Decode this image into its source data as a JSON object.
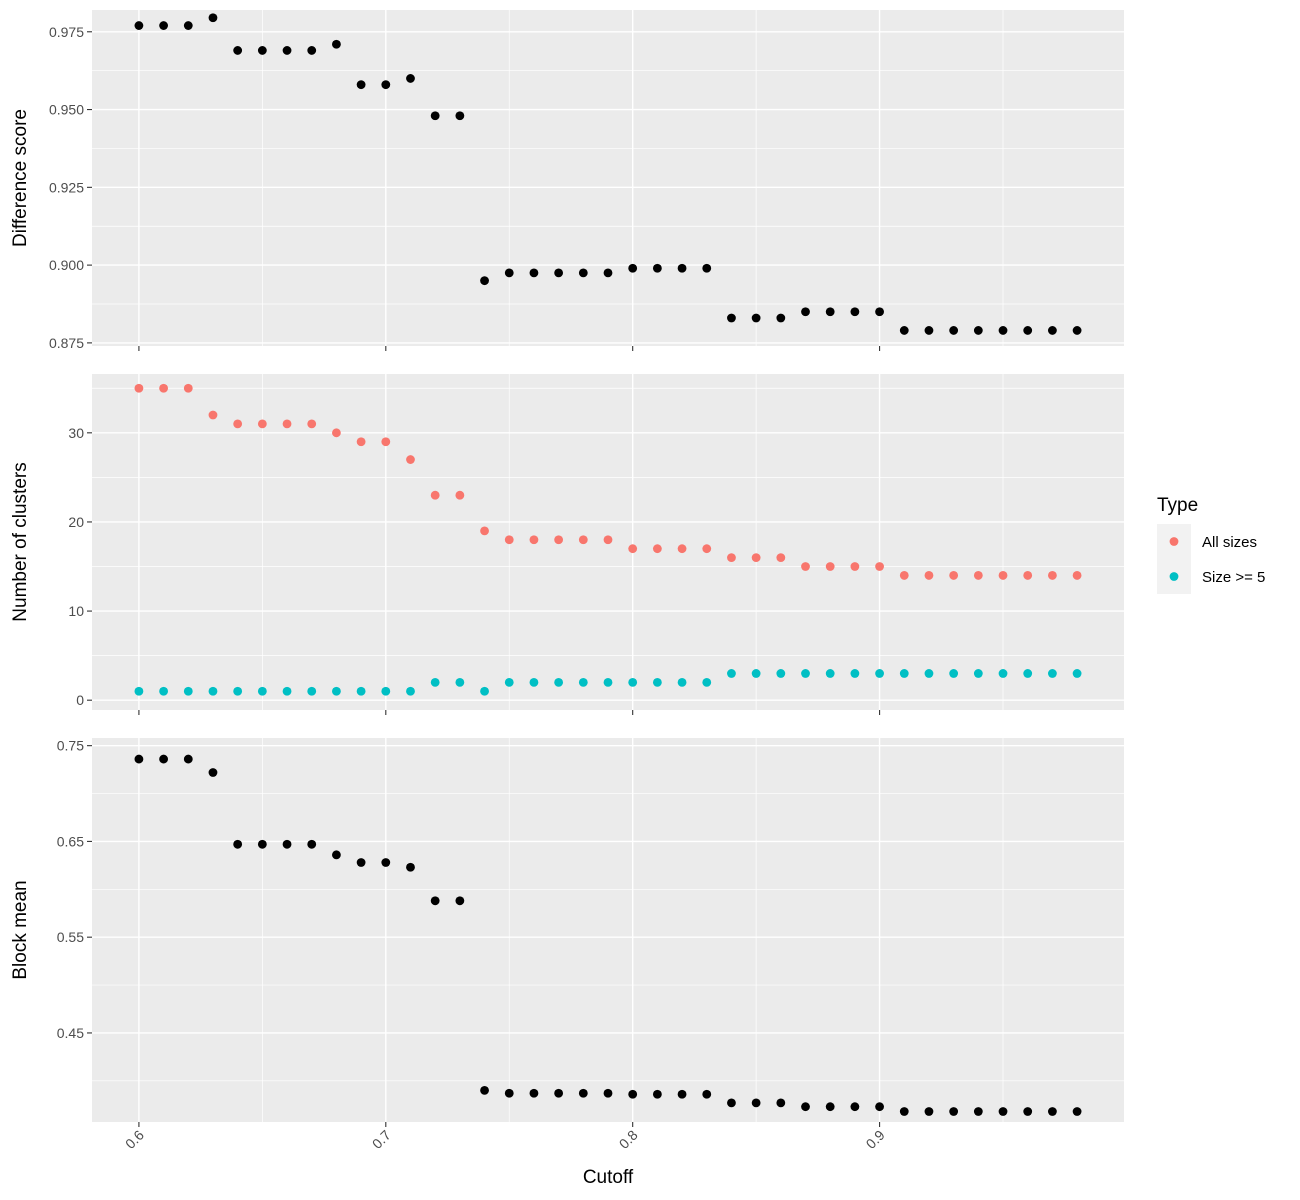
{
  "chart_data": [
    {
      "type": "scatter",
      "ylabel": "Difference score",
      "ylim": [
        0.874,
        0.982
      ],
      "yticks": [
        0.875,
        0.9,
        0.925,
        0.95,
        0.975
      ],
      "ytick_labels": [
        "0.875",
        "0.900",
        "0.925",
        "0.950",
        "0.975"
      ],
      "grid": true,
      "series": [
        {
          "color": "#000000",
          "x": [
            0.6,
            0.61,
            0.62,
            0.63,
            0.64,
            0.65,
            0.66,
            0.67,
            0.68,
            0.69,
            0.7,
            0.71,
            0.72,
            0.73,
            0.74,
            0.75,
            0.76,
            0.77,
            0.78,
            0.79,
            0.8,
            0.81,
            0.82,
            0.83,
            0.84,
            0.85,
            0.86,
            0.87,
            0.88,
            0.89,
            0.9,
            0.91,
            0.92,
            0.93,
            0.94,
            0.95,
            0.96,
            0.97,
            0.98
          ],
          "y": [
            0.977,
            0.977,
            0.977,
            0.9795,
            0.969,
            0.969,
            0.969,
            0.969,
            0.971,
            0.958,
            0.958,
            0.96,
            0.948,
            0.948,
            0.895,
            0.8975,
            0.8975,
            0.8975,
            0.8975,
            0.8975,
            0.899,
            0.899,
            0.899,
            0.899,
            0.883,
            0.883,
            0.883,
            0.885,
            0.885,
            0.885,
            0.885,
            0.879,
            0.879,
            0.879,
            0.879,
            0.879,
            0.879,
            0.879,
            0.879
          ]
        }
      ]
    },
    {
      "type": "scatter",
      "ylabel": "Number of clusters",
      "ylim": [
        -1.1,
        36.6
      ],
      "yticks": [
        0,
        10,
        20,
        30
      ],
      "ytick_labels": [
        "0",
        "10",
        "20",
        "30"
      ],
      "grid": true,
      "legend": {
        "title": "Type",
        "position": "right"
      },
      "series": [
        {
          "name": "All sizes",
          "color": "#F8766D",
          "x": [
            0.6,
            0.61,
            0.62,
            0.63,
            0.64,
            0.65,
            0.66,
            0.67,
            0.68,
            0.69,
            0.7,
            0.71,
            0.72,
            0.73,
            0.74,
            0.75,
            0.76,
            0.77,
            0.78,
            0.79,
            0.8,
            0.81,
            0.82,
            0.83,
            0.84,
            0.85,
            0.86,
            0.87,
            0.88,
            0.89,
            0.9,
            0.91,
            0.92,
            0.93,
            0.94,
            0.95,
            0.96,
            0.97,
            0.98
          ],
          "y": [
            35,
            35,
            35,
            32,
            31,
            31,
            31,
            31,
            30,
            29,
            29,
            27,
            23,
            23,
            19,
            18,
            18,
            18,
            18,
            18,
            17,
            17,
            17,
            17,
            16,
            16,
            16,
            15,
            15,
            15,
            15,
            14,
            14,
            14,
            14,
            14,
            14,
            14,
            14
          ]
        },
        {
          "name": "Size >= 5",
          "color": "#00BFC4",
          "x": [
            0.6,
            0.61,
            0.62,
            0.63,
            0.64,
            0.65,
            0.66,
            0.67,
            0.68,
            0.69,
            0.7,
            0.71,
            0.72,
            0.73,
            0.74,
            0.75,
            0.76,
            0.77,
            0.78,
            0.79,
            0.8,
            0.81,
            0.82,
            0.83,
            0.84,
            0.85,
            0.86,
            0.87,
            0.88,
            0.89,
            0.9,
            0.91,
            0.92,
            0.93,
            0.94,
            0.95,
            0.96,
            0.97,
            0.98
          ],
          "y": [
            1,
            1,
            1,
            1,
            1,
            1,
            1,
            1,
            1,
            1,
            1,
            1,
            2,
            2,
            1,
            2,
            2,
            2,
            2,
            2,
            2,
            2,
            2,
            2,
            3,
            3,
            3,
            3,
            3,
            3,
            3,
            3,
            3,
            3,
            3,
            3,
            3,
            3,
            3
          ]
        }
      ]
    },
    {
      "type": "scatter",
      "xlabel": "Cutoff",
      "ylabel": "Block mean",
      "xlim": [
        0.581,
        0.999
      ],
      "xticks": [
        0.6,
        0.7,
        0.8,
        0.9
      ],
      "xtick_labels": [
        "0.6",
        "0.7",
        "0.8",
        "0.9"
      ],
      "ylim": [
        0.357,
        0.758
      ],
      "yticks": [
        0.45,
        0.55,
        0.65,
        0.75
      ],
      "ytick_labels": [
        "0.45",
        "0.55",
        "0.65",
        "0.75"
      ],
      "grid": true,
      "series": [
        {
          "color": "#000000",
          "x": [
            0.6,
            0.61,
            0.62,
            0.63,
            0.64,
            0.65,
            0.66,
            0.67,
            0.68,
            0.69,
            0.7,
            0.71,
            0.72,
            0.73,
            0.74,
            0.75,
            0.76,
            0.77,
            0.78,
            0.79,
            0.8,
            0.81,
            0.82,
            0.83,
            0.84,
            0.85,
            0.86,
            0.87,
            0.88,
            0.89,
            0.9,
            0.91,
            0.92,
            0.93,
            0.94,
            0.95,
            0.96,
            0.97,
            0.98
          ],
          "y": [
            0.736,
            0.736,
            0.736,
            0.722,
            0.647,
            0.647,
            0.647,
            0.647,
            0.636,
            0.628,
            0.628,
            0.623,
            0.588,
            0.588,
            0.39,
            0.387,
            0.387,
            0.387,
            0.387,
            0.387,
            0.386,
            0.386,
            0.386,
            0.386,
            0.377,
            0.377,
            0.377,
            0.373,
            0.373,
            0.373,
            0.373,
            0.368,
            0.368,
            0.368,
            0.368,
            0.368,
            0.368,
            0.368,
            0.368
          ]
        }
      ]
    }
  ]
}
